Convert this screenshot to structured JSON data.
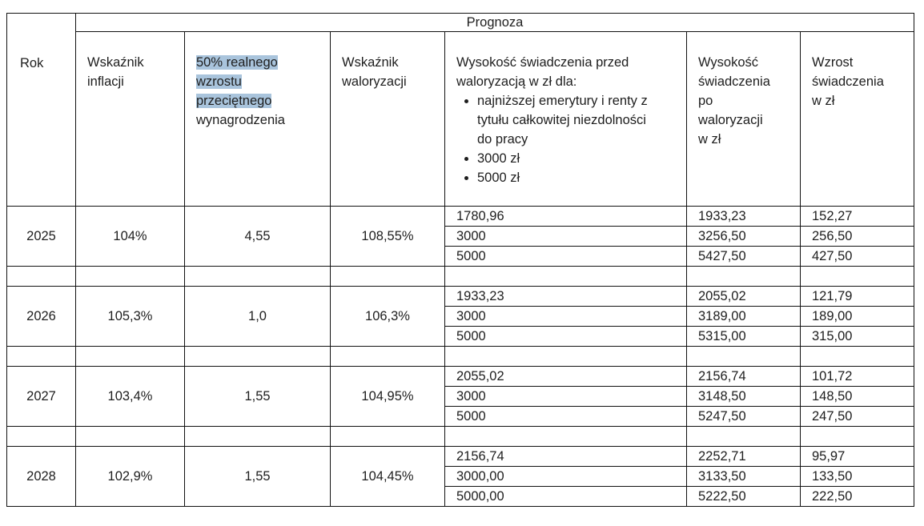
{
  "header": {
    "rok": "Rok",
    "prognoza": "Prognoza",
    "col_inflation": [
      "Wskaźnik",
      "inflacji"
    ],
    "col_wage_highlighted": [
      "50% realnego",
      "wzrostu",
      "przeciętnego"
    ],
    "col_wage_rest": "wynagrodzenia",
    "col_valorization": [
      "Wskaźnik",
      "waloryzacji"
    ],
    "col_before": "Wysokość świadczenia przed waloryzacją w zł dla:",
    "col_before_bullets": [
      "najniższej emerytury i renty z tytułu całkowitej niezdolności do pracy",
      "3000 zł",
      "5000 zł"
    ],
    "col_after": [
      "Wysokość",
      "świadczenia",
      "po",
      "waloryzacji",
      "w zł"
    ],
    "col_increase": [
      "Wzrost",
      "świadczenia",
      "w zł"
    ]
  },
  "years": [
    {
      "year": "2025",
      "inflation": "104%",
      "wage_growth": "4,55",
      "valorization": "108,55%",
      "rows": [
        [
          "1780,96",
          "1933,23",
          "152,27"
        ],
        [
          "3000",
          "3256,50",
          "256,50"
        ],
        [
          "5000",
          "5427,50",
          "427,50"
        ]
      ]
    },
    {
      "year": "2026",
      "inflation": "105,3%",
      "wage_growth": "1,0",
      "valorization": "106,3%",
      "rows": [
        [
          "1933,23",
          "2055,02",
          "121,79"
        ],
        [
          "3000",
          "3189,00",
          "189,00"
        ],
        [
          "5000",
          "5315,00",
          "315,00"
        ]
      ]
    },
    {
      "year": "2027",
      "inflation": "103,4%",
      "wage_growth": "1,55",
      "valorization": "104,95%",
      "rows": [
        [
          "2055,02",
          "2156,74",
          "101,72"
        ],
        [
          "3000",
          "3148,50",
          "148,50"
        ],
        [
          "5000",
          "5247,50",
          "247,50"
        ]
      ]
    },
    {
      "year": "2028",
      "inflation": "102,9%",
      "wage_growth": "1,55",
      "valorization": "104,45%",
      "rows": [
        [
          "2156,74",
          "2252,71",
          "95,97"
        ],
        [
          "3000,00",
          "3133,50",
          "133,50"
        ],
        [
          "5000,00",
          "5222,50",
          "222,50"
        ]
      ]
    }
  ]
}
